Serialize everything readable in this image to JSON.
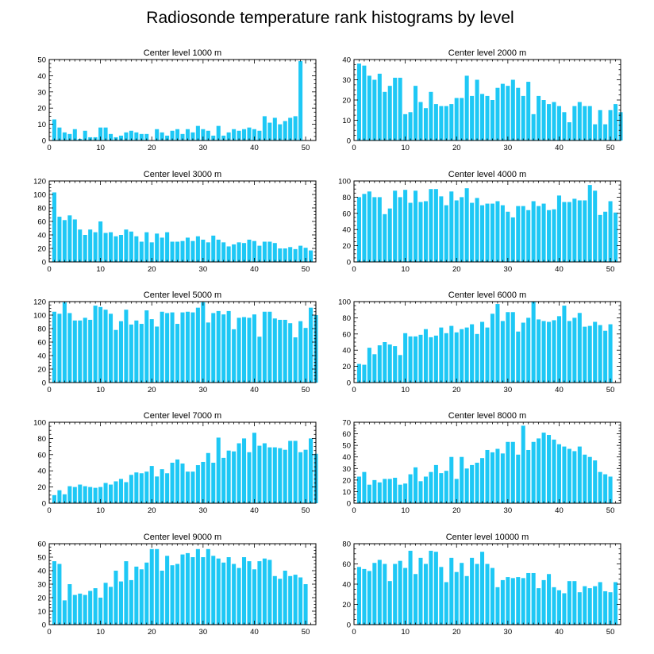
{
  "chart_data": {
    "title": "Radiosonde temperature rank histograms by level",
    "type": "bar",
    "x_range": [
      0,
      52
    ],
    "x_ticks": [
      0,
      10,
      20,
      30,
      40,
      50
    ],
    "bar_color": "#1ec8f5",
    "panels": [
      {
        "title": "Center level 1000 m",
        "ylim": [
          0,
          50
        ],
        "y_ticks": [
          0,
          10,
          20,
          30,
          40,
          50
        ],
        "values": [
          13,
          8,
          5,
          4,
          7,
          1,
          6,
          2,
          2,
          8,
          8,
          4,
          2,
          3,
          5,
          6,
          5,
          4,
          4,
          0,
          7,
          5,
          3,
          6,
          7,
          4,
          7,
          5,
          9,
          7,
          6,
          3,
          9,
          3,
          5,
          7,
          6,
          7,
          8,
          7,
          6,
          15,
          11,
          14,
          10,
          12,
          14,
          15,
          49
        ]
      },
      {
        "title": "Center level 2000 m",
        "ylim": [
          0,
          40
        ],
        "y_ticks": [
          0,
          10,
          20,
          30,
          40
        ],
        "values": [
          38,
          37,
          32,
          30,
          33,
          24,
          27,
          31,
          31,
          13,
          14,
          27,
          19,
          16,
          24,
          18,
          17,
          17,
          18,
          21,
          21,
          32,
          22,
          30,
          23,
          22,
          20,
          26,
          28,
          27,
          30,
          26,
          22,
          29,
          13,
          22,
          20,
          18,
          19,
          17,
          14,
          9,
          17,
          19,
          17,
          17,
          8,
          15,
          8,
          15,
          18,
          14
        ]
      },
      {
        "title": "Center level 3000 m",
        "ylim": [
          0,
          120
        ],
        "y_ticks": [
          0,
          20,
          40,
          60,
          80,
          100,
          120
        ],
        "values": [
          103,
          67,
          62,
          69,
          63,
          48,
          40,
          48,
          44,
          60,
          43,
          44,
          38,
          40,
          48,
          45,
          38,
          30,
          44,
          29,
          42,
          36,
          44,
          30,
          30,
          31,
          36,
          31,
          38,
          33,
          29,
          39,
          33,
          29,
          23,
          26,
          29,
          28,
          33,
          31,
          24,
          30,
          30,
          28,
          20,
          20,
          22,
          19,
          24,
          21,
          17
        ]
      },
      {
        "title": "Center level 4000 m",
        "ylim": [
          0,
          100
        ],
        "y_ticks": [
          0,
          20,
          40,
          60,
          80,
          100
        ],
        "values": [
          80,
          84,
          87,
          80,
          80,
          59,
          66,
          88,
          80,
          89,
          73,
          88,
          74,
          75,
          90,
          90,
          81,
          70,
          87,
          76,
          80,
          91,
          73,
          79,
          70,
          72,
          72,
          75,
          70,
          62,
          55,
          69,
          69,
          64,
          75,
          69,
          72,
          64,
          65,
          82,
          74,
          74,
          78,
          76,
          76,
          95,
          88,
          58,
          62,
          75,
          61
        ]
      },
      {
        "title": "Center level 5000 m",
        "ylim": [
          0,
          120
        ],
        "y_ticks": [
          0,
          20,
          40,
          60,
          80,
          100,
          120
        ],
        "values": [
          105,
          102,
          119,
          103,
          92,
          92,
          96,
          93,
          114,
          112,
          108,
          102,
          78,
          91,
          108,
          86,
          92,
          87,
          107,
          94,
          83,
          105,
          103,
          104,
          87,
          104,
          105,
          104,
          111,
          119,
          89,
          103,
          106,
          101,
          106,
          79,
          96,
          97,
          96,
          101,
          68,
          105,
          105,
          95,
          93,
          93,
          88,
          67,
          91,
          81,
          111,
          100
        ]
      },
      {
        "title": "Center level 6000 m",
        "ylim": [
          0,
          100
        ],
        "y_ticks": [
          0,
          20,
          40,
          60,
          80,
          100
        ],
        "values": [
          23,
          22,
          43,
          35,
          46,
          50,
          47,
          45,
          34,
          61,
          57,
          57,
          59,
          66,
          56,
          58,
          68,
          61,
          70,
          62,
          66,
          68,
          72,
          60,
          75,
          68,
          85,
          97,
          76,
          87,
          87,
          63,
          74,
          80,
          100,
          78,
          76,
          75,
          77,
          82,
          95,
          76,
          80,
          86,
          69,
          70,
          75,
          71,
          64,
          72
        ]
      },
      {
        "title": "Center level 7000 m",
        "ylim": [
          0,
          100
        ],
        "y_ticks": [
          0,
          20,
          40,
          60,
          80,
          100
        ],
        "values": [
          10,
          16,
          11,
          21,
          20,
          23,
          21,
          20,
          19,
          20,
          25,
          23,
          27,
          30,
          26,
          35,
          38,
          37,
          39,
          46,
          33,
          42,
          37,
          50,
          54,
          49,
          39,
          39,
          47,
          51,
          62,
          50,
          81,
          56,
          65,
          64,
          74,
          80,
          63,
          87,
          71,
          74,
          69,
          69,
          68,
          66,
          77,
          77,
          63,
          66,
          80,
          61
        ]
      },
      {
        "title": "Center level 8000 m",
        "ylim": [
          0,
          70
        ],
        "y_ticks": [
          0,
          10,
          20,
          30,
          40,
          50,
          60,
          70
        ],
        "values": [
          23,
          27,
          16,
          20,
          18,
          21,
          21,
          22,
          16,
          17,
          25,
          31,
          19,
          23,
          27,
          33,
          26,
          28,
          40,
          21,
          40,
          30,
          33,
          35,
          39,
          46,
          44,
          47,
          43,
          53,
          53,
          42,
          67,
          46,
          53,
          56,
          61,
          59,
          55,
          51,
          49,
          47,
          45,
          49,
          42,
          40,
          37,
          27,
          25,
          23
        ]
      },
      {
        "title": "Center level 9000 m",
        "ylim": [
          0,
          60
        ],
        "y_ticks": [
          0,
          10,
          20,
          30,
          40,
          50,
          60
        ],
        "values": [
          47,
          45,
          18,
          30,
          22,
          23,
          22,
          25,
          27,
          20,
          31,
          28,
          40,
          32,
          47,
          33,
          43,
          41,
          46,
          56,
          56,
          40,
          51,
          44,
          45,
          52,
          53,
          50,
          56,
          50,
          56,
          51,
          49,
          46,
          50,
          45,
          42,
          50,
          47,
          41,
          47,
          49,
          48,
          36,
          34,
          40,
          36,
          37,
          35,
          30
        ]
      },
      {
        "title": "Center level 10000 m",
        "ylim": [
          0,
          80
        ],
        "y_ticks": [
          0,
          20,
          40,
          60,
          80
        ],
        "values": [
          57,
          55,
          53,
          61,
          64,
          60,
          43,
          60,
          63,
          56,
          73,
          50,
          66,
          60,
          73,
          72,
          57,
          42,
          66,
          52,
          61,
          48,
          66,
          60,
          72,
          60,
          56,
          37,
          44,
          47,
          46,
          47,
          46,
          51,
          51,
          36,
          44,
          50,
          37,
          34,
          31,
          43,
          43,
          32,
          38,
          36,
          38,
          42,
          33,
          32,
          42
        ]
      }
    ]
  }
}
